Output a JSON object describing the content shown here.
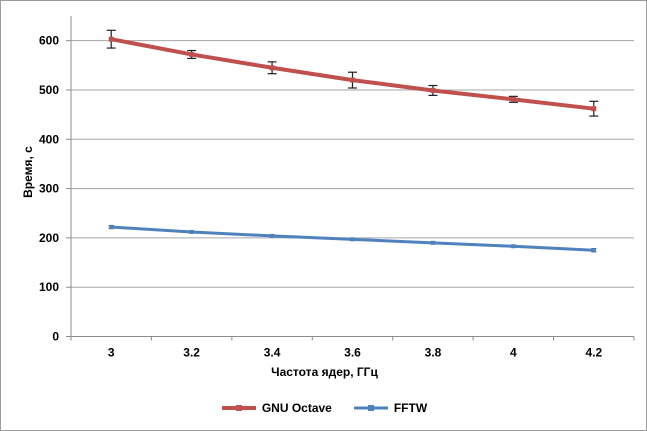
{
  "chart_data": {
    "type": "line",
    "title": "",
    "xlabel": "Частота ядер, ГГц",
    "ylabel": "Время, с",
    "categories": [
      "3",
      "3.2",
      "3.4",
      "3.6",
      "3.8",
      "4",
      "4.2"
    ],
    "x": [
      3,
      3.2,
      3.4,
      3.6,
      3.8,
      4,
      4.2
    ],
    "ylim": [
      0,
      650
    ],
    "y_major_unit": 100,
    "y_tick_labels": [
      "0",
      "100",
      "200",
      "300",
      "400",
      "500",
      "600"
    ],
    "grid": true,
    "legend_position": "bottom-center",
    "series": [
      {
        "name": "GNU Octave",
        "color": "#C0504D",
        "values": [
          603,
          572,
          545,
          520,
          499,
          481,
          462
        ],
        "error_bars": [
          18,
          8,
          12,
          16,
          10,
          6,
          15
        ]
      },
      {
        "name": "FFTW",
        "color": "#4F81BD",
        "values": [
          222,
          212,
          204,
          197,
          190,
          183,
          175
        ],
        "error_bars": [
          3,
          2,
          2,
          2,
          2,
          2,
          3
        ]
      }
    ]
  },
  "colors": {
    "gridline": "#A6A6A6",
    "axis": "#8C8C8C",
    "error_bar": "#1F1F1F",
    "text": "#000000",
    "frame": "#9C9C9C",
    "background": "#FFFFFF"
  }
}
